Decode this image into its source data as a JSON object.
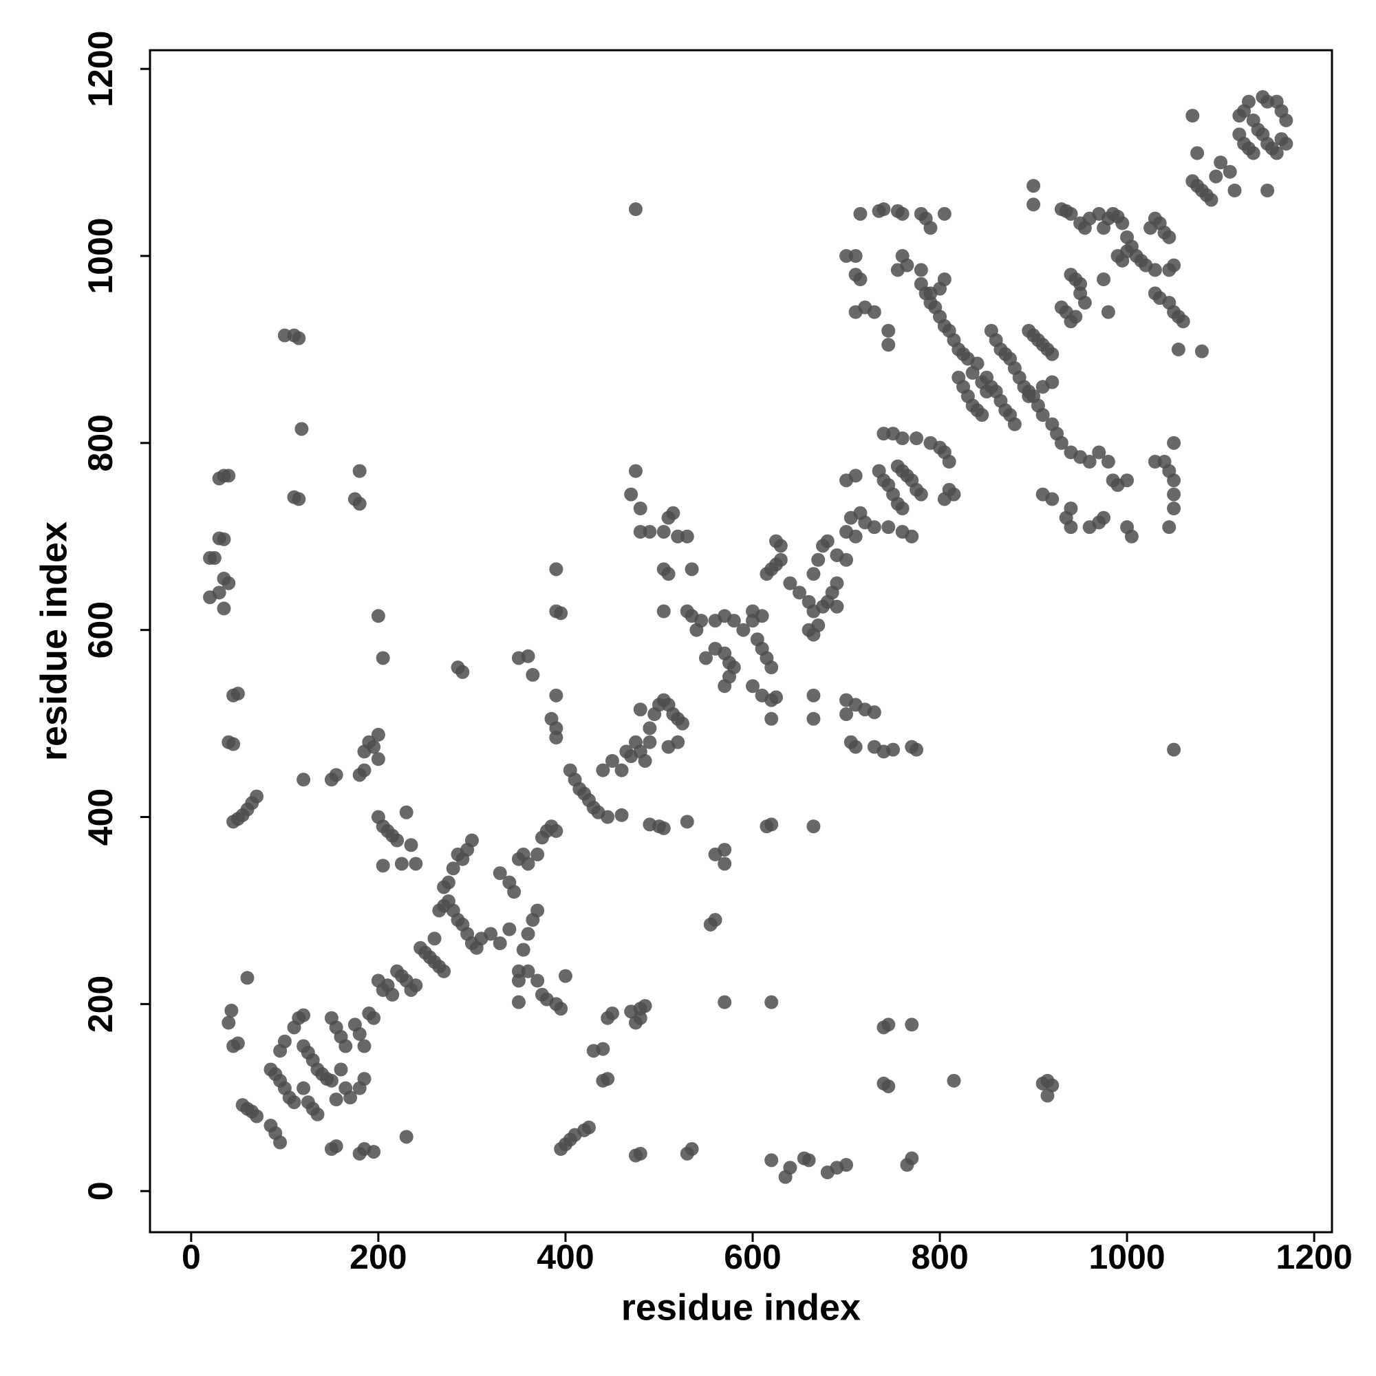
{
  "chart_data": {
    "type": "scatter",
    "xlabel": "residue index",
    "ylabel": "residue index",
    "color": "#4d4d4d",
    "xlim": [
      -44,
      1219
    ],
    "ylim": [
      -44,
      1220
    ],
    "xticks": [
      0,
      200,
      400,
      600,
      800,
      1000,
      1200
    ],
    "yticks": [
      0,
      200,
      400,
      600,
      800,
      1000,
      1200
    ],
    "x": [
      40,
      43,
      45,
      50,
      55,
      60,
      65,
      70,
      85,
      90,
      95,
      60,
      85,
      90,
      95,
      100,
      105,
      110,
      95,
      100,
      110,
      115,
      120,
      120,
      125,
      130,
      135,
      140,
      145,
      150,
      120,
      125,
      130,
      135,
      150,
      155,
      160,
      165,
      160,
      165,
      170,
      155,
      175,
      180,
      185,
      185,
      180,
      190,
      195,
      155,
      150,
      180,
      185,
      195,
      230,
      200,
      205,
      210,
      215,
      220,
      225,
      230,
      235,
      240,
      245,
      250,
      255,
      260,
      265,
      270,
      260,
      265,
      270,
      275,
      280,
      285,
      290,
      295,
      300,
      305,
      310,
      320,
      330,
      280,
      285,
      290,
      295,
      300,
      270,
      275,
      340,
      355,
      360,
      365,
      370,
      330,
      340,
      345,
      350,
      355,
      360,
      370,
      375,
      380,
      385,
      390,
      350,
      350,
      360,
      370,
      375,
      380,
      390,
      395,
      350,
      400,
      405,
      410,
      415,
      420,
      425,
      430,
      435,
      445,
      460,
      200,
      205,
      210,
      215,
      220,
      225,
      205,
      230,
      235,
      240,
      190,
      185,
      195,
      200,
      185,
      180,
      200,
      205,
      200,
      285,
      290,
      180,
      175,
      180,
      115,
      110,
      120,
      150,
      155,
      115,
      110,
      100,
      118,
      30,
      35,
      40,
      30,
      35,
      25,
      20,
      35,
      40,
      30,
      20,
      35,
      45,
      50,
      40,
      45,
      45,
      50,
      55,
      60,
      65,
      70,
      350,
      360,
      365,
      390,
      390,
      395,
      390,
      385,
      390,
      390,
      395,
      400,
      405,
      410,
      420,
      425,
      430,
      440,
      445,
      440,
      450,
      445,
      480,
      470,
      475,
      480,
      485,
      480,
      475,
      530,
      535,
      475,
      440,
      450,
      460,
      465,
      470,
      475,
      480,
      485,
      490,
      495,
      500,
      505,
      510,
      515,
      520,
      525,
      480,
      490,
      510,
      520,
      500,
      505,
      490,
      530,
      560,
      570,
      570,
      560,
      555,
      570,
      620,
      615,
      620,
      665,
      470,
      475,
      480,
      480,
      490,
      505,
      510,
      515,
      520,
      530,
      505,
      510,
      535,
      505,
      530,
      535,
      540,
      545,
      550,
      560,
      570,
      575,
      580,
      570,
      575,
      560,
      570,
      580,
      590,
      600,
      605,
      610,
      615,
      620,
      600,
      610,
      620,
      625,
      620,
      600,
      610,
      615,
      620,
      625,
      630,
      625,
      630,
      640,
      650,
      660,
      665,
      670,
      665,
      660,
      675,
      680,
      685,
      690,
      690,
      665,
      670,
      675,
      680,
      690,
      700,
      665,
      665,
      700,
      710,
      700,
      720,
      730,
      705,
      710,
      730,
      740,
      750,
      770,
      775,
      740,
      745,
      770,
      745,
      740,
      680,
      690,
      700,
      660,
      655,
      640,
      635,
      620,
      765,
      770,
      815,
      910,
      915,
      920,
      915,
      1050,
      700,
      710,
      705,
      715,
      720,
      730,
      710,
      700,
      735,
      740,
      745,
      750,
      755,
      760,
      755,
      760,
      765,
      770,
      775,
      780,
      775,
      790,
      800,
      805,
      810,
      810,
      805,
      815,
      740,
      750,
      760,
      745,
      760,
      770,
      700,
      710,
      710,
      715,
      710,
      720,
      730,
      715,
      735,
      740,
      755,
      760,
      780,
      785,
      790,
      805,
      760,
      765,
      755,
      745,
      745,
      780,
      780,
      785,
      790,
      795,
      800,
      805,
      810,
      815,
      820,
      825,
      830,
      840,
      800,
      790,
      805,
      820,
      825,
      830,
      835,
      840,
      845,
      850,
      855,
      860,
      865,
      870,
      875,
      880,
      835,
      845,
      850,
      855,
      860,
      865,
      870,
      875,
      880,
      885,
      890,
      895,
      900,
      905,
      910,
      920,
      925,
      930,
      940,
      950,
      960,
      970,
      980,
      985,
      990,
      1000,
      1005,
      1000,
      960,
      970,
      975,
      940,
      935,
      940,
      910,
      920,
      895,
      900,
      905,
      910,
      915,
      920,
      895,
      910,
      920,
      930,
      935,
      940,
      945,
      950,
      955,
      940,
      945,
      950,
      930,
      935,
      940,
      950,
      955,
      960,
      970,
      975,
      980,
      985,
      990,
      995,
      1000,
      1005,
      1010,
      1015,
      1020,
      1030,
      1025,
      1030,
      1035,
      1040,
      1045,
      990,
      995,
      1000,
      1030,
      1035,
      1045,
      1050,
      1055,
      1060,
      1045,
      1050,
      975,
      980,
      900,
      900,
      1055,
      1080,
      1030,
      1040,
      1045,
      1050,
      1050,
      1050,
      1045,
      1050,
      1070,
      1075,
      1070,
      1075,
      1080,
      1085,
      1090,
      1095,
      1100,
      1110,
      1115,
      1120,
      1125,
      1130,
      1135,
      1140,
      1145,
      1150,
      1155,
      1160,
      1165,
      1170,
      1150,
      1160,
      1165,
      1170,
      1150,
      1145,
      1120,
      1125,
      1130,
      1135
    ],
    "values": [
      180,
      193,
      155,
      158,
      92,
      88,
      85,
      80,
      70,
      62,
      52,
      228,
      130,
      125,
      118,
      110,
      100,
      95,
      150,
      160,
      175,
      185,
      188,
      155,
      148,
      140,
      130,
      125,
      120,
      118,
      110,
      95,
      88,
      82,
      185,
      175,
      165,
      155,
      130,
      110,
      100,
      98,
      178,
      168,
      155,
      120,
      110,
      190,
      185,
      48,
      45,
      40,
      45,
      42,
      58,
      225,
      215,
      220,
      210,
      235,
      230,
      225,
      215,
      220,
      260,
      255,
      250,
      245,
      240,
      235,
      270,
      300,
      305,
      310,
      300,
      290,
      285,
      275,
      265,
      260,
      270,
      275,
      265,
      345,
      360,
      355,
      365,
      375,
      325,
      330,
      280,
      258,
      275,
      290,
      300,
      340,
      330,
      320,
      355,
      360,
      350,
      360,
      378,
      385,
      390,
      385,
      235,
      225,
      235,
      225,
      210,
      205,
      200,
      195,
      202,
      230,
      450,
      440,
      430,
      425,
      418,
      410,
      405,
      400,
      402,
      400,
      390,
      385,
      380,
      375,
      350,
      348,
      405,
      370,
      350,
      480,
      470,
      475,
      462,
      450,
      445,
      488,
      570,
      615,
      560,
      555,
      770,
      740,
      735,
      740,
      742,
      440,
      440,
      445,
      912,
      915,
      915,
      815,
      762,
      765,
      765,
      698,
      697,
      677,
      677,
      655,
      650,
      640,
      635,
      623,
      530,
      532,
      480,
      478,
      395,
      398,
      402,
      408,
      415,
      422,
      570,
      572,
      552,
      665,
      620,
      618,
      530,
      505,
      495,
      485,
      45,
      50,
      55,
      60,
      65,
      68,
      150,
      152,
      120,
      118,
      190,
      185,
      195,
      192,
      180,
      185,
      198,
      40,
      38,
      40,
      45,
      1050,
      450,
      460,
      450,
      470,
      465,
      480,
      470,
      460,
      495,
      510,
      520,
      525,
      520,
      510,
      505,
      500,
      515,
      480,
      475,
      480,
      390,
      388,
      392,
      395,
      360,
      365,
      350,
      290,
      285,
      202,
      202,
      390,
      392,
      390,
      745,
      770,
      730,
      705,
      705,
      705,
      720,
      725,
      700,
      700,
      665,
      660,
      665,
      620,
      620,
      615,
      600,
      610,
      570,
      580,
      575,
      565,
      560,
      540,
      550,
      610,
      615,
      610,
      600,
      610,
      590,
      580,
      570,
      560,
      540,
      530,
      525,
      528,
      505,
      620,
      615,
      660,
      665,
      670,
      675,
      695,
      690,
      650,
      640,
      630,
      620,
      605,
      595,
      600,
      625,
      630,
      640,
      650,
      625,
      660,
      675,
      690,
      695,
      680,
      675,
      530,
      505,
      525,
      520,
      510,
      515,
      512,
      480,
      475,
      475,
      470,
      472,
      475,
      472,
      175,
      178,
      178,
      112,
      115,
      20,
      25,
      28,
      33,
      35,
      25,
      15,
      33,
      28,
      35,
      118,
      115,
      118,
      113,
      102,
      472,
      760,
      765,
      720,
      725,
      715,
      710,
      700,
      705,
      770,
      760,
      755,
      745,
      735,
      730,
      775,
      770,
      765,
      760,
      750,
      745,
      805,
      800,
      795,
      790,
      780,
      750,
      740,
      745,
      810,
      810,
      805,
      710,
      705,
      700,
      1000,
      1000,
      980,
      975,
      940,
      945,
      940,
      1045,
      1048,
      1050,
      1048,
      1045,
      1045,
      1040,
      1030,
      1045,
      1000,
      990,
      985,
      920,
      905,
      985,
      970,
      960,
      950,
      945,
      935,
      925,
      920,
      910,
      900,
      895,
      890,
      885,
      965,
      960,
      975,
      870,
      860,
      850,
      840,
      835,
      830,
      870,
      860,
      855,
      845,
      835,
      830,
      820,
      875,
      865,
      855,
      920,
      910,
      900,
      895,
      890,
      880,
      870,
      860,
      855,
      850,
      840,
      830,
      820,
      810,
      800,
      790,
      785,
      780,
      790,
      780,
      760,
      755,
      760,
      700,
      710,
      710,
      715,
      720,
      710,
      720,
      730,
      745,
      740,
      920,
      915,
      910,
      905,
      900,
      895,
      850,
      860,
      865,
      945,
      940,
      930,
      935,
      960,
      950,
      980,
      975,
      970,
      1050,
      1048,
      1045,
      1035,
      1030,
      1040,
      1045,
      1030,
      1040,
      1045,
      1042,
      1035,
      1020,
      1010,
      1000,
      995,
      990,
      985,
      1030,
      1040,
      1035,
      1025,
      1020,
      1000,
      995,
      1005,
      960,
      955,
      950,
      940,
      935,
      930,
      985,
      990,
      975,
      940,
      1075,
      1055,
      900,
      898,
      780,
      780,
      770,
      760,
      745,
      730,
      710,
      800,
      1150,
      1110,
      1080,
      1075,
      1070,
      1065,
      1060,
      1085,
      1100,
      1090,
      1070,
      1150,
      1155,
      1165,
      1145,
      1135,
      1130,
      1120,
      1115,
      1110,
      1125,
      1120,
      1165,
      1165,
      1155,
      1145,
      1070,
      1170,
      1130,
      1120,
      1115,
      1110
    ]
  }
}
